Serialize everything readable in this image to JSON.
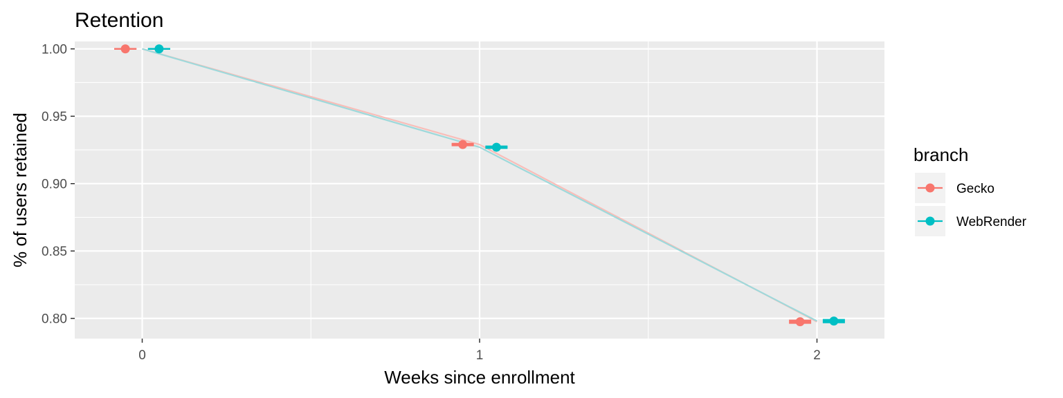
{
  "chart_data": {
    "type": "line",
    "title": "Retention",
    "xlabel": "Weeks since enrollment",
    "ylabel": "% of users retained",
    "x": [
      0,
      1,
      2
    ],
    "xlim": [
      -0.2,
      2.2
    ],
    "ylim": [
      0.785,
      1.0055
    ],
    "x_ticks": [
      0,
      1,
      2
    ],
    "x_tick_labels": [
      "0",
      "1",
      "2"
    ],
    "y_ticks": [
      0.8,
      0.85,
      0.9,
      0.95,
      1.0
    ],
    "y_tick_labels": [
      "0.80",
      "0.85",
      "0.90",
      "0.95",
      "1.00"
    ],
    "grid": true,
    "legend": {
      "title": "branch",
      "position": "right"
    },
    "dodge": 0.05,
    "series": [
      {
        "name": "Gecko",
        "color": "#F8766D",
        "line_color": "#F9BDB8",
        "values": [
          1.0,
          0.929,
          0.7975
        ],
        "lower": [
          1.0,
          0.9283,
          0.7965
        ],
        "upper": [
          1.0,
          0.9297,
          0.7985
        ]
      },
      {
        "name": "WebRender",
        "color": "#00BFC4",
        "line_color": "#9ED9DB",
        "values": [
          1.0,
          0.927,
          0.798
        ],
        "lower": [
          1.0,
          0.9263,
          0.797
        ],
        "upper": [
          1.0,
          0.9277,
          0.799
        ]
      }
    ]
  }
}
